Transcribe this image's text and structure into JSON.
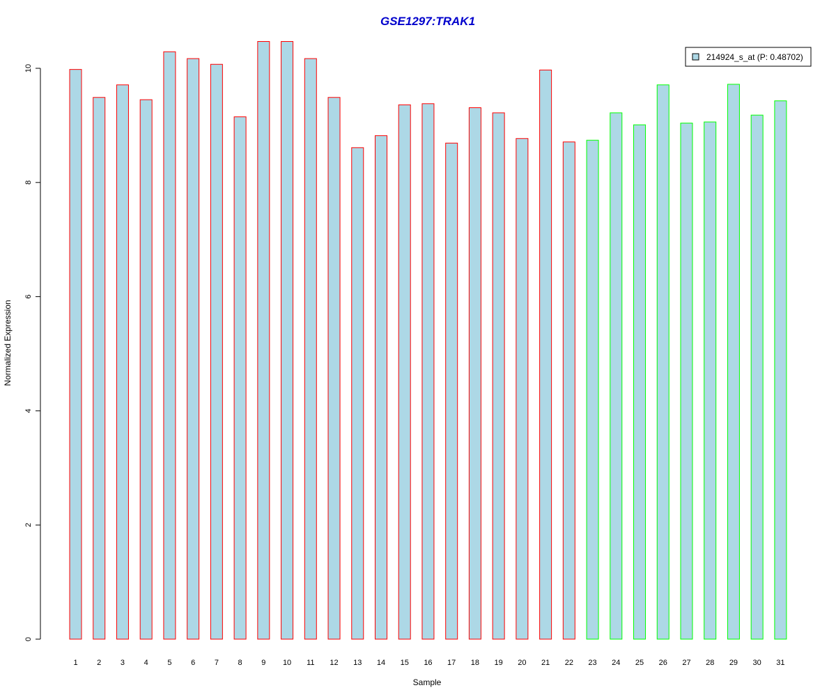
{
  "chart_data": {
    "type": "bar",
    "title": "GSE1297:TRAK1",
    "xlabel": "Sample",
    "ylabel": "Normalized Expression",
    "ylim": [
      0,
      10.5
    ],
    "yticks": [
      "0",
      "2",
      "4",
      "6",
      "8",
      "10"
    ],
    "grid": false,
    "legend": {
      "position": "top-right",
      "label": "214924_s_at (P: 0.48702)"
    },
    "categories": [
      "1",
      "2",
      "3",
      "4",
      "5",
      "6",
      "7",
      "8",
      "9",
      "10",
      "11",
      "12",
      "13",
      "14",
      "15",
      "16",
      "17",
      "18",
      "19",
      "20",
      "21",
      "22",
      "23",
      "24",
      "25",
      "26",
      "27",
      "28",
      "29",
      "30",
      "31"
    ],
    "values": [
      9.98,
      9.49,
      9.71,
      9.45,
      10.29,
      10.17,
      10.07,
      9.15,
      10.47,
      10.47,
      10.17,
      9.49,
      8.61,
      8.82,
      9.36,
      9.38,
      8.69,
      9.31,
      9.22,
      8.77,
      9.97,
      8.71,
      8.74,
      9.22,
      9.01,
      9.71,
      9.04,
      9.06,
      9.72,
      9.18,
      9.43
    ],
    "groups": [
      "1",
      "1",
      "1",
      "1",
      "1",
      "1",
      "1",
      "1",
      "1",
      "1",
      "1",
      "1",
      "1",
      "1",
      "1",
      "1",
      "1",
      "1",
      "1",
      "1",
      "1",
      "1",
      "2",
      "2",
      "2",
      "2",
      "2",
      "2",
      "2",
      "2",
      "2"
    ],
    "colors": {
      "bar_fill": "#add8e6",
      "group_1_border": "#ff0000",
      "group_2_border": "#00ff00",
      "title": "#0000cc"
    }
  }
}
